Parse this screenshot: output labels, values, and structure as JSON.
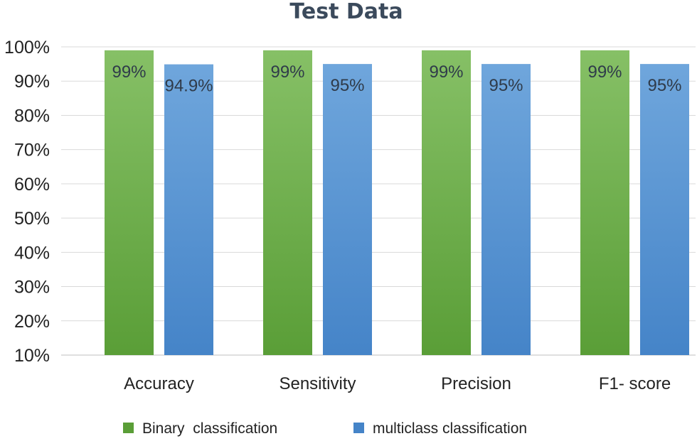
{
  "chart_data": {
    "type": "bar",
    "title": "Test Data",
    "categories": [
      "Accuracy",
      "Sensitivity",
      "Precision",
      "F1- score"
    ],
    "series": [
      {
        "name": "Binary  classification",
        "values": [
          99,
          99,
          99,
          99
        ],
        "labels": [
          "99%",
          "99%",
          "99%",
          "99%"
        ],
        "color_top": "#86c066",
        "color_bottom": "#5a9e37"
      },
      {
        "name": "multiclass classification",
        "values": [
          94.9,
          95,
          95,
          95
        ],
        "labels": [
          "94.9%",
          "95%",
          "95%",
          "95%"
        ],
        "color_top": "#6fa6dc",
        "color_bottom": "#4584c8"
      }
    ],
    "y_ticks": [
      "100%",
      "90%",
      "80%",
      "70%",
      "60%",
      "50%",
      "40%",
      "30%",
      "20%",
      "10%"
    ],
    "y_tick_values": [
      100,
      90,
      80,
      70,
      60,
      50,
      40,
      30,
      20,
      10
    ],
    "ylim": [
      10,
      100
    ],
    "xlabel": "",
    "ylabel": "",
    "grid": true,
    "legend_position": "bottom"
  }
}
